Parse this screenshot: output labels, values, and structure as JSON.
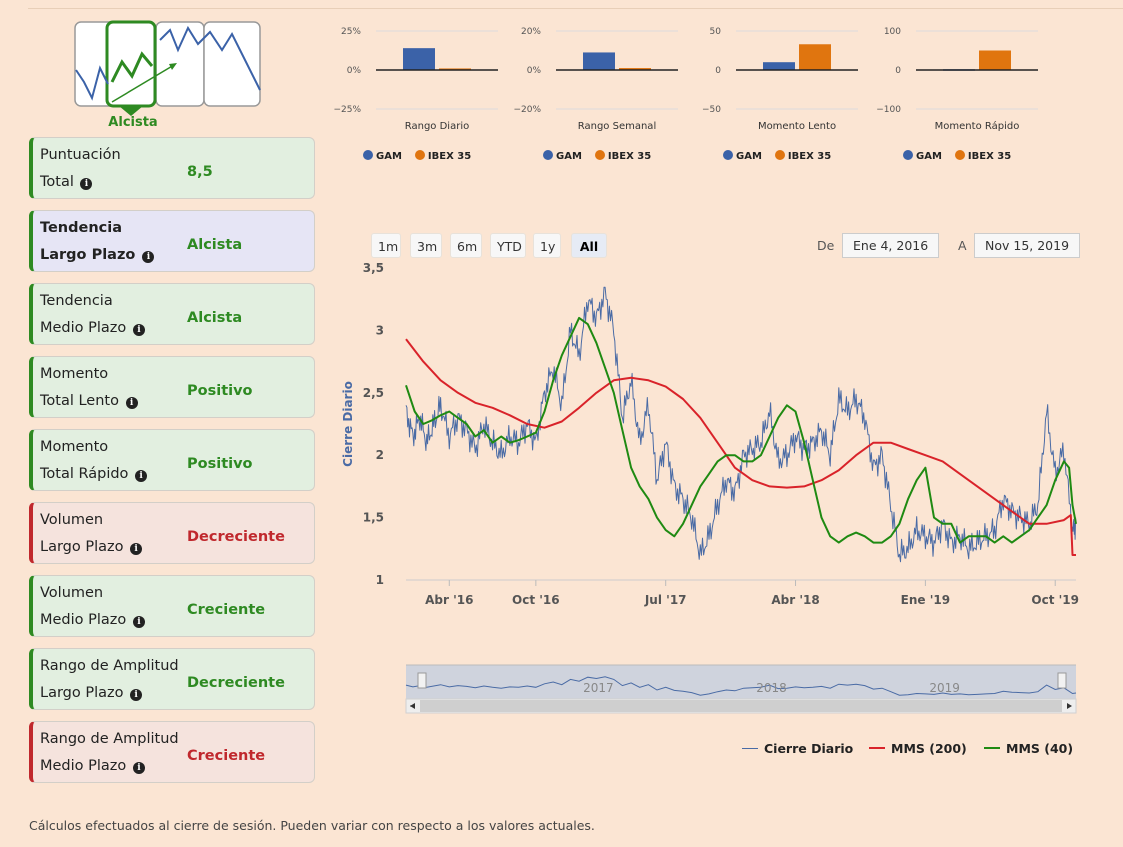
{
  "trend": {
    "label": "Alcista",
    "colors": {
      "up": "#2e8a22",
      "line": "#3b62a8",
      "border": "#888888"
    }
  },
  "cards": [
    {
      "line1": "Puntuación",
      "line2": "Total",
      "value": "8,5",
      "tone": "pos",
      "highlight": false
    },
    {
      "line1": "Tendencia",
      "line2": "Largo Plazo",
      "value": "Alcista",
      "tone": "pos",
      "highlight": true
    },
    {
      "line1": "Tendencia",
      "line2": "Medio Plazo",
      "value": "Alcista",
      "tone": "pos",
      "highlight": false
    },
    {
      "line1": "Momento",
      "line2": "Total Lento",
      "value": "Positivo",
      "tone": "pos",
      "highlight": false
    },
    {
      "line1": "Momento",
      "line2": "Total Rápido",
      "value": "Positivo",
      "tone": "pos",
      "highlight": false
    },
    {
      "line1": "Volumen",
      "line2": "Largo Plazo",
      "value": "Decreciente",
      "tone": "neg",
      "highlight": false
    },
    {
      "line1": "Volumen",
      "line2": "Medio Plazo",
      "value": "Creciente",
      "tone": "pos",
      "highlight": false
    },
    {
      "line1": "Rango de Amplitud",
      "line2": "Largo Plazo",
      "value": "Decreciente",
      "tone": "pos",
      "highlight": false
    },
    {
      "line1": "Rango de Amplitud",
      "line2": "Medio Plazo",
      "value": "Creciente",
      "tone": "neg",
      "highlight": false
    }
  ],
  "colors": {
    "gam": "#3b62a8",
    "ibex": "#e0750f",
    "mms200": "#d9232a",
    "mms40": "#1f8a12",
    "close": "#4a6ba5",
    "pos": "#2e8a22",
    "neg": "#c0282d"
  },
  "chart_data": [
    {
      "type": "bar",
      "title": "Rango Diario",
      "series": [
        {
          "name": "GAM",
          "values": [
            14
          ]
        },
        {
          "name": "IBEX 35",
          "values": [
            1
          ]
        }
      ],
      "ylim": [
        -25,
        25
      ],
      "ticks": [
        "25%",
        "0%",
        "−25%"
      ],
      "tick_values": [
        25,
        0,
        -25
      ]
    },
    {
      "type": "bar",
      "title": "Rango Semanal",
      "series": [
        {
          "name": "GAM",
          "values": [
            9
          ]
        },
        {
          "name": "IBEX 35",
          "values": [
            1
          ]
        }
      ],
      "ylim": [
        -20,
        20
      ],
      "ticks": [
        "20%",
        "0%",
        "−20%"
      ],
      "tick_values": [
        20,
        0,
        -20
      ]
    },
    {
      "type": "bar",
      "title": "Momento Lento",
      "series": [
        {
          "name": "GAM",
          "values": [
            10
          ]
        },
        {
          "name": "IBEX 35",
          "values": [
            33
          ]
        }
      ],
      "ylim": [
        -50,
        50
      ],
      "ticks": [
        "50",
        "0",
        "−50"
      ],
      "tick_values": [
        50,
        0,
        -50
      ]
    },
    {
      "type": "bar",
      "title": "Momento Rápido",
      "series": [
        {
          "name": "GAM",
          "values": [
            2
          ]
        },
        {
          "name": "IBEX 35",
          "values": [
            50
          ]
        }
      ],
      "ylim": [
        -100,
        100
      ],
      "ticks": [
        "100",
        "0",
        "−100"
      ],
      "tick_values": [
        100,
        0,
        -100
      ]
    },
    {
      "type": "line",
      "title": "",
      "ylabel": "Cierre Diario",
      "ylim": [
        1,
        3.5
      ],
      "y_ticks": [
        "1",
        "1,5",
        "2",
        "2,5",
        "3",
        "3,5"
      ],
      "y_tick_values": [
        1,
        1.5,
        2,
        2.5,
        3,
        3.5
      ],
      "xlim": [
        2016.0,
        2019.87
      ],
      "x_ticks": [
        "Abr '16",
        "Oct '16",
        "Jul '17",
        "Abr '18",
        "Ene '19",
        "Oct '19"
      ],
      "x_tick_values": [
        2016.25,
        2016.75,
        2017.5,
        2018.25,
        2019.0,
        2019.75
      ],
      "series": [
        {
          "name": "Cierre Diario",
          "x": [
            2016.0,
            2016.04,
            2016.08,
            2016.12,
            2016.16,
            2016.2,
            2016.25,
            2016.3,
            2016.35,
            2016.4,
            2016.45,
            2016.5,
            2016.55,
            2016.6,
            2016.65,
            2016.7,
            2016.75,
            2016.8,
            2016.85,
            2016.9,
            2016.95,
            2017.0,
            2017.05,
            2017.1,
            2017.15,
            2017.2,
            2017.25,
            2017.3,
            2017.35,
            2017.4,
            2017.45,
            2017.5,
            2017.55,
            2017.6,
            2017.65,
            2017.7,
            2017.75,
            2017.8,
            2017.85,
            2017.9,
            2017.95,
            2018.0,
            2018.05,
            2018.1,
            2018.15,
            2018.2,
            2018.25,
            2018.3,
            2018.35,
            2018.4,
            2018.45,
            2018.5,
            2018.55,
            2018.6,
            2018.65,
            2018.7,
            2018.75,
            2018.8,
            2018.85,
            2018.9,
            2018.95,
            2019.0,
            2019.05,
            2019.1,
            2019.15,
            2019.2,
            2019.25,
            2019.3,
            2019.35,
            2019.4,
            2019.45,
            2019.5,
            2019.55,
            2019.6,
            2019.65,
            2019.7,
            2019.75,
            2019.8,
            2019.85,
            2019.87
          ],
          "values": [
            2.35,
            2.15,
            2.3,
            2.1,
            2.25,
            2.4,
            2.15,
            2.3,
            2.2,
            2.05,
            2.25,
            2.1,
            2.0,
            2.15,
            2.1,
            2.25,
            2.1,
            2.5,
            2.7,
            2.4,
            3.0,
            2.8,
            3.25,
            3.1,
            3.3,
            3.0,
            2.3,
            2.6,
            2.1,
            2.4,
            1.8,
            2.1,
            1.75,
            1.65,
            1.5,
            1.2,
            1.35,
            1.6,
            1.8,
            1.7,
            2.0,
            2.05,
            2.1,
            2.35,
            1.95,
            2.0,
            2.15,
            2.05,
            2.1,
            2.2,
            2.0,
            2.45,
            2.35,
            2.45,
            2.3,
            1.9,
            2.0,
            1.6,
            1.2,
            1.25,
            1.4,
            1.35,
            1.3,
            1.45,
            1.3,
            1.35,
            1.25,
            1.3,
            1.35,
            1.4,
            1.65,
            1.55,
            1.5,
            1.45,
            1.6,
            2.35,
            1.85,
            2.05,
            1.4,
            1.45
          ]
        },
        {
          "name": "MMS (200)",
          "x": [
            2016.0,
            2016.1,
            2016.2,
            2016.3,
            2016.4,
            2016.5,
            2016.6,
            2016.7,
            2016.8,
            2016.9,
            2017.0,
            2017.1,
            2017.2,
            2017.3,
            2017.4,
            2017.5,
            2017.6,
            2017.7,
            2017.8,
            2017.9,
            2018.0,
            2018.1,
            2018.2,
            2018.3,
            2018.4,
            2018.5,
            2018.6,
            2018.7,
            2018.8,
            2018.9,
            2019.0,
            2019.1,
            2019.2,
            2019.3,
            2019.4,
            2019.5,
            2019.6,
            2019.7,
            2019.8,
            2019.84,
            2019.85,
            2019.87
          ],
          "values": [
            2.93,
            2.75,
            2.6,
            2.5,
            2.42,
            2.38,
            2.32,
            2.25,
            2.22,
            2.27,
            2.38,
            2.5,
            2.6,
            2.62,
            2.6,
            2.55,
            2.45,
            2.3,
            2.1,
            1.9,
            1.8,
            1.75,
            1.74,
            1.75,
            1.8,
            1.88,
            2.0,
            2.1,
            2.1,
            2.05,
            2.0,
            1.95,
            1.85,
            1.75,
            1.65,
            1.55,
            1.45,
            1.45,
            1.48,
            1.52,
            1.2,
            1.2
          ]
        },
        {
          "name": "MMS (40)",
          "x": [
            2016.0,
            2016.05,
            2016.1,
            2016.15,
            2016.2,
            2016.25,
            2016.3,
            2016.35,
            2016.4,
            2016.45,
            2016.5,
            2016.55,
            2016.6,
            2016.65,
            2016.7,
            2016.75,
            2016.8,
            2016.85,
            2016.9,
            2016.95,
            2017.0,
            2017.05,
            2017.1,
            2017.15,
            2017.2,
            2017.25,
            2017.3,
            2017.35,
            2017.4,
            2017.45,
            2017.5,
            2017.55,
            2017.6,
            2017.65,
            2017.7,
            2017.75,
            2017.8,
            2017.85,
            2017.9,
            2017.95,
            2018.0,
            2018.05,
            2018.1,
            2018.15,
            2018.2,
            2018.25,
            2018.3,
            2018.35,
            2018.4,
            2018.45,
            2018.5,
            2018.55,
            2018.6,
            2018.65,
            2018.7,
            2018.75,
            2018.8,
            2018.85,
            2018.9,
            2018.95,
            2019.0,
            2019.05,
            2019.1,
            2019.15,
            2019.2,
            2019.25,
            2019.3,
            2019.35,
            2019.4,
            2019.45,
            2019.5,
            2019.55,
            2019.6,
            2019.65,
            2019.7,
            2019.75,
            2019.8,
            2019.83,
            2019.85,
            2019.87
          ],
          "values": [
            2.56,
            2.35,
            2.25,
            2.28,
            2.32,
            2.35,
            2.3,
            2.25,
            2.15,
            2.2,
            2.1,
            2.15,
            2.1,
            2.12,
            2.15,
            2.18,
            2.35,
            2.6,
            2.8,
            2.95,
            3.1,
            3.05,
            2.9,
            2.7,
            2.5,
            2.2,
            1.9,
            1.75,
            1.65,
            1.5,
            1.4,
            1.35,
            1.45,
            1.6,
            1.75,
            1.85,
            1.95,
            2.0,
            2.0,
            1.95,
            1.95,
            2.0,
            2.15,
            2.3,
            2.4,
            2.35,
            2.1,
            1.8,
            1.5,
            1.35,
            1.3,
            1.35,
            1.38,
            1.35,
            1.3,
            1.3,
            1.35,
            1.45,
            1.65,
            1.8,
            1.9,
            1.5,
            1.45,
            1.45,
            1.3,
            1.35,
            1.35,
            1.35,
            1.3,
            1.35,
            1.3,
            1.35,
            1.4,
            1.5,
            1.6,
            1.8,
            1.95,
            1.9,
            1.6,
            1.45
          ]
        }
      ],
      "navigator_ticks": [
        "2017",
        "2018",
        "2019"
      ]
    }
  ],
  "main": {
    "range_buttons": [
      "1m",
      "3m",
      "6m",
      "YTD",
      "1y",
      "All"
    ],
    "active_range": "All",
    "from_label": "De",
    "from_date": "Ene 4, 2016",
    "to_label": "A",
    "to_date": "Nov 15, 2019"
  },
  "footer": "Cálculos efectuados al cierre de sesión. Pueden variar con respecto a los valores actuales."
}
